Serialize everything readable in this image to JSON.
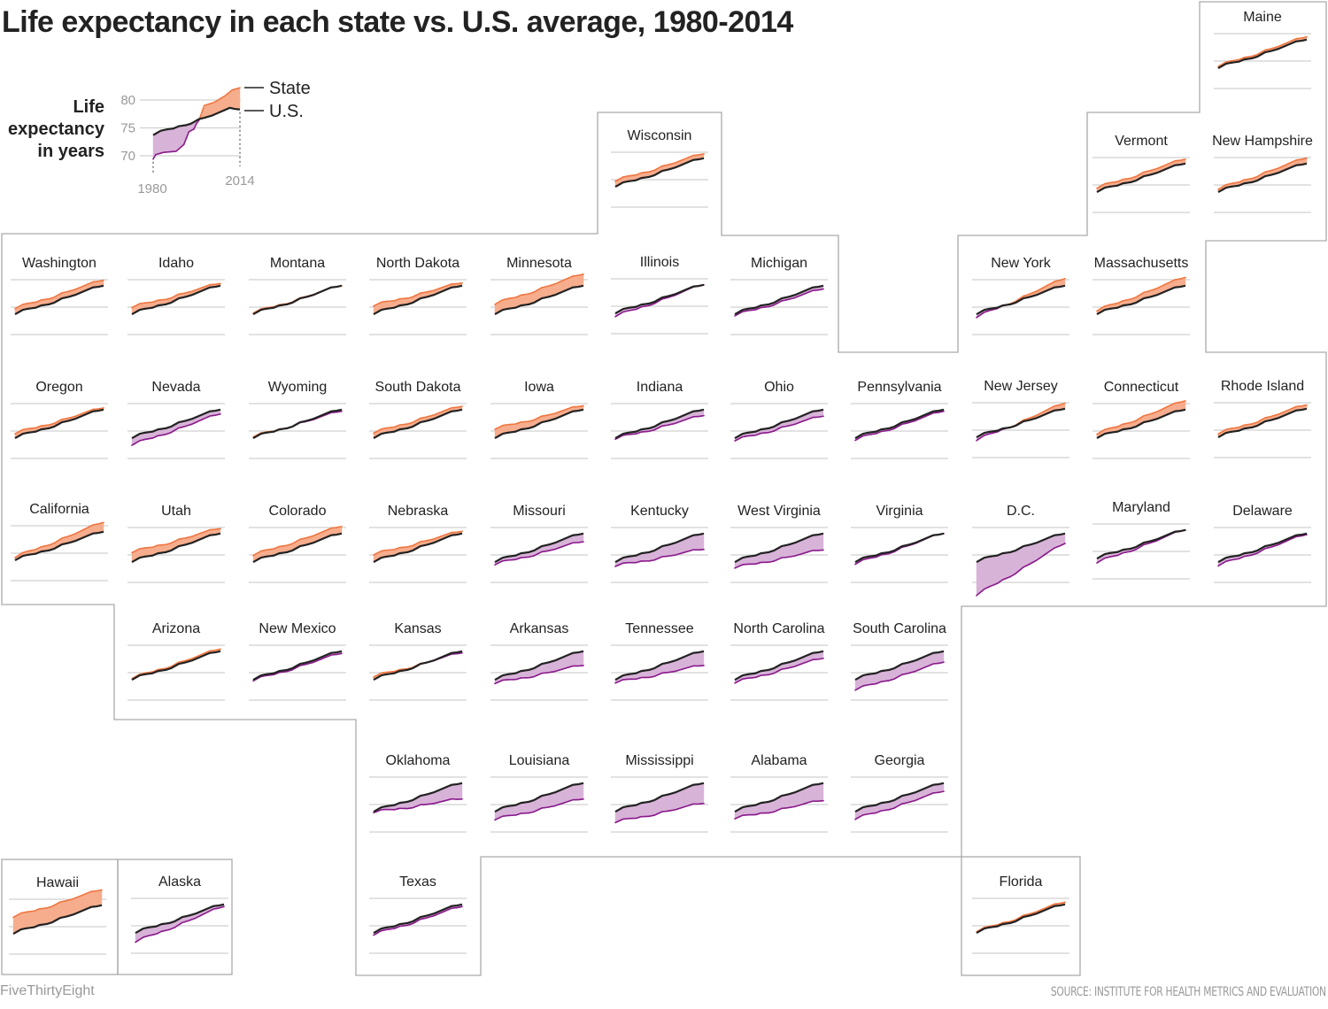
{
  "title": "Life expectancy in each state vs. U.S. average, 1980-2014",
  "credit": "FiveThirtyEight",
  "source": "SOURCE: INSTITUTE FOR HEALTH METRICS AND EVALUATION",
  "colors": {
    "above_fill": "#f6ad8d",
    "above_line": "#ee7640",
    "below_fill": "#d8b3d8",
    "below_line": "#8a1a8c",
    "us_line": "#222222",
    "grid": "#d0d0d0"
  },
  "legend": {
    "ylabel_lines": [
      "Life",
      "expectancy",
      "in years"
    ],
    "yticks": [
      "80",
      "75",
      "70"
    ],
    "xticks": [
      "1980",
      "2014"
    ],
    "state_label": "State",
    "us_label": "U.S.",
    "example_state": {
      "years": [
        1980,
        1981,
        1984,
        1989,
        1991,
        1992,
        1994,
        1996,
        1997,
        1998,
        2000,
        2004,
        2008,
        2011,
        2014
      ],
      "values": [
        69.4,
        70.2,
        70.6,
        70.8,
        71.6,
        72,
        74.3,
        74.8,
        75.8,
        76.4,
        79,
        79.6,
        80.7,
        81.8,
        82.2
      ]
    }
  },
  "chart_data": {
    "type": "line",
    "subtype": "small-multiples-tile-map",
    "xlim": [
      1980,
      2014
    ],
    "ylim": [
      70,
      80
    ],
    "yticks": [
      70,
      75,
      80
    ],
    "grid": true,
    "us": {
      "name": "U.S.",
      "years": [
        1980,
        1983,
        1985,
        1988,
        1990,
        1993,
        1995,
        1998,
        2000,
        2003,
        2005,
        2008,
        2010,
        2012,
        2014
      ],
      "values": [
        73.7,
        74.5,
        74.7,
        74.9,
        75.3,
        75.5,
        75.8,
        76.6,
        76.8,
        77.2,
        77.6,
        78.2,
        78.6,
        78.7,
        78.9
      ]
    },
    "states": [
      {
        "name": "Maine",
        "le_1980": 74.0,
        "le_2014": 79.4
      },
      {
        "name": "Wisconsin",
        "le_1980": 74.7,
        "le_2014": 79.7
      },
      {
        "name": "Vermont",
        "le_1980": 74.4,
        "le_2014": 79.7
      },
      {
        "name": "New Hampshire",
        "le_1980": 74.2,
        "le_2014": 79.9
      },
      {
        "name": "Washington",
        "le_1980": 74.7,
        "le_2014": 79.9
      },
      {
        "name": "Idaho",
        "le_1980": 74.9,
        "le_2014": 79.3
      },
      {
        "name": "Montana",
        "le_1980": 73.9,
        "le_2014": 78.9
      },
      {
        "name": "North Dakota",
        "le_1980": 75.2,
        "le_2014": 79.4
      },
      {
        "name": "Minnesota",
        "le_1980": 75.5,
        "le_2014": 81.0
      },
      {
        "name": "Illinois",
        "le_1980": 73.1,
        "le_2014": 78.9
      },
      {
        "name": "Michigan",
        "le_1980": 73.4,
        "le_2014": 78.3
      },
      {
        "name": "New York",
        "le_1980": 73.1,
        "le_2014": 80.2
      },
      {
        "name": "Massachusetts",
        "le_1980": 74.3,
        "le_2014": 80.4
      },
      {
        "name": "Oregon",
        "le_1980": 74.5,
        "le_2014": 79.2
      },
      {
        "name": "Nevada",
        "le_1980": 72.4,
        "le_2014": 78.1
      },
      {
        "name": "Wyoming",
        "le_1980": 73.9,
        "le_2014": 78.6
      },
      {
        "name": "South Dakota",
        "le_1980": 74.6,
        "le_2014": 79.5
      },
      {
        "name": "Iowa",
        "le_1980": 75.3,
        "le_2014": 79.6
      },
      {
        "name": "Indiana",
        "le_1980": 73.5,
        "le_2014": 77.8
      },
      {
        "name": "Ohio",
        "le_1980": 73.2,
        "le_2014": 77.7
      },
      {
        "name": "Pennsylvania",
        "le_1980": 73.3,
        "le_2014": 78.6
      },
      {
        "name": "New Jersey",
        "le_1980": 73.1,
        "le_2014": 79.9
      },
      {
        "name": "Connecticut",
        "le_1980": 74.4,
        "le_2014": 80.5
      },
      {
        "name": "Rhode Island",
        "le_1980": 74.3,
        "le_2014": 79.6
      },
      {
        "name": "California",
        "le_1980": 74.2,
        "le_2014": 80.6
      },
      {
        "name": "Utah",
        "le_1980": 75.4,
        "le_2014": 79.8
      },
      {
        "name": "Colorado",
        "le_1980": 74.9,
        "le_2014": 80.2
      },
      {
        "name": "Nebraska",
        "le_1980": 75.0,
        "le_2014": 79.3
      },
      {
        "name": "Missouri",
        "le_1980": 73.2,
        "le_2014": 77.4
      },
      {
        "name": "Kentucky",
        "le_1980": 72.9,
        "le_2014": 76.0
      },
      {
        "name": "West Virginia",
        "le_1980": 72.6,
        "le_2014": 75.9
      },
      {
        "name": "Virginia",
        "le_1980": 73.3,
        "le_2014": 78.9
      },
      {
        "name": "D.C.",
        "le_1980": 67.6,
        "le_2014": 77.1
      },
      {
        "name": "Maryland",
        "le_1980": 72.9,
        "le_2014": 78.9
      },
      {
        "name": "Delaware",
        "le_1980": 73.0,
        "le_2014": 78.7
      },
      {
        "name": "Arizona",
        "le_1980": 73.9,
        "le_2014": 79.3
      },
      {
        "name": "New Mexico",
        "le_1980": 73.5,
        "le_2014": 78.5
      },
      {
        "name": "Kansas",
        "le_1980": 74.2,
        "le_2014": 78.6
      },
      {
        "name": "Arkansas",
        "le_1980": 73.0,
        "le_2014": 76.3
      },
      {
        "name": "Tennessee",
        "le_1980": 73.1,
        "le_2014": 76.3
      },
      {
        "name": "North Carolina",
        "le_1980": 73.1,
        "le_2014": 77.6
      },
      {
        "name": "South Carolina",
        "le_1980": 71.8,
        "le_2014": 76.9
      },
      {
        "name": "Oklahoma",
        "le_1980": 73.5,
        "le_2014": 76.0
      },
      {
        "name": "Louisiana",
        "le_1980": 72.2,
        "le_2014": 76.0
      },
      {
        "name": "Mississippi",
        "le_1980": 71.7,
        "le_2014": 75.2
      },
      {
        "name": "Alabama",
        "le_1980": 72.4,
        "le_2014": 75.7
      },
      {
        "name": "Georgia",
        "le_1980": 72.3,
        "le_2014": 77.4
      },
      {
        "name": "Hawaii",
        "le_1980": 76.7,
        "le_2014": 81.7
      },
      {
        "name": "Alaska",
        "le_1980": 72.0,
        "le_2014": 78.5
      },
      {
        "name": "Texas",
        "le_1980": 73.3,
        "le_2014": 78.5
      },
      {
        "name": "Florida",
        "le_1980": 73.9,
        "le_2014": 79.3
      }
    ]
  }
}
